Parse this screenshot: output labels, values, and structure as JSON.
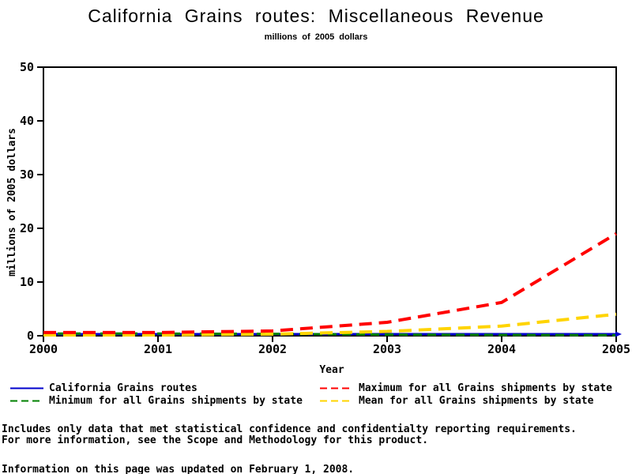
{
  "title": "California Grains routes: Miscellaneous Revenue",
  "subtitle": "millions of 2005 dollars",
  "chart_data": {
    "type": "line",
    "x": [
      2000,
      2001,
      2002,
      2003,
      2004,
      2005
    ],
    "xlabel": "Year",
    "ylabel": "millions of 2005 dollars",
    "xlim": [
      2000,
      2005
    ],
    "ylim": [
      0,
      50
    ],
    "y_ticks": [
      0,
      10,
      20,
      30,
      40,
      50
    ],
    "grid": false,
    "legend_position": "bottom-two-columns",
    "series": [
      {
        "name": "California Grains routes",
        "color": "#0000cc",
        "style": "solid",
        "width": 3,
        "values": [
          0.3,
          0.3,
          0.3,
          0.3,
          0.3,
          0.3
        ]
      },
      {
        "name": "Minimum for all Grains shipments by state",
        "color": "#008000",
        "style": "dashed",
        "width": 3,
        "values": [
          0.4,
          0.4,
          0.35,
          0.2,
          0.15,
          0.1
        ]
      },
      {
        "name": "Maximum for all Grains shipments by state",
        "color": "#ff0000",
        "style": "dashed",
        "width": 4,
        "values": [
          0.6,
          0.6,
          0.9,
          2.5,
          6.2,
          19.0
        ]
      },
      {
        "name": "Mean for all Grains shipments by state",
        "color": "#ffd400",
        "style": "dashed",
        "width": 4,
        "values": [
          0.15,
          0.15,
          0.3,
          0.8,
          1.8,
          4.0
        ]
      }
    ]
  },
  "footnotes": {
    "line1": "Includes only data that met statistical confidence and confidentialty reporting requirements.",
    "line2": "For more information, see the Scope and Methodology for this product.",
    "line3": "Information on this page was updated on February 1, 2008."
  },
  "colors": {
    "axis": "#000000",
    "background": "#ffffff",
    "text": "#000000"
  }
}
